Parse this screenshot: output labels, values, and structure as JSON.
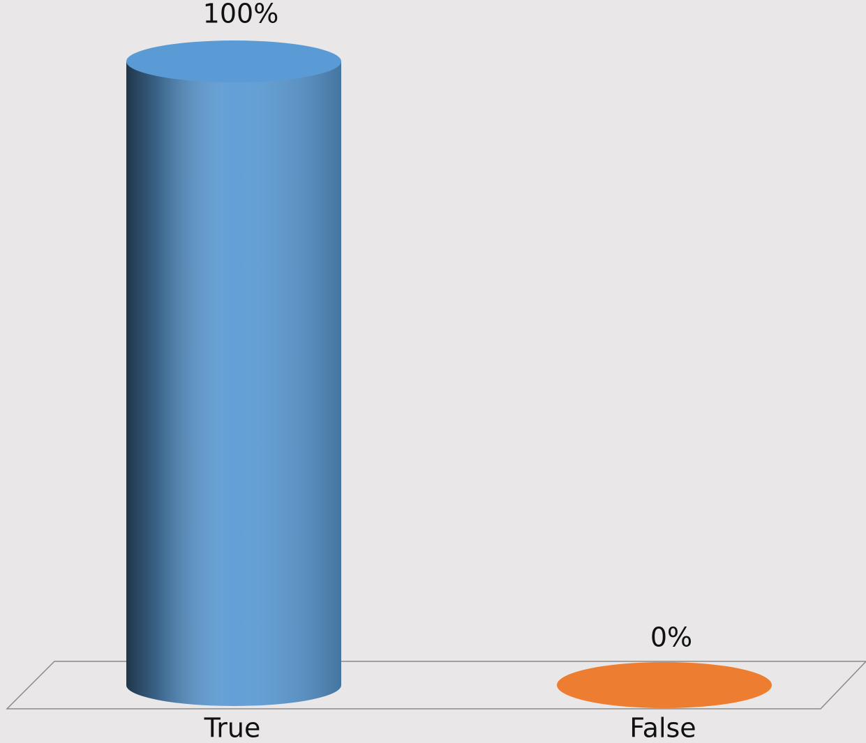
{
  "chart_data": {
    "type": "bar3d-cylinder",
    "categories": [
      "True",
      "False"
    ],
    "values": [
      100,
      0
    ],
    "value_labels": [
      "100%",
      "0%"
    ],
    "colors": [
      "#5b9bd5",
      "#ed7d31"
    ]
  }
}
